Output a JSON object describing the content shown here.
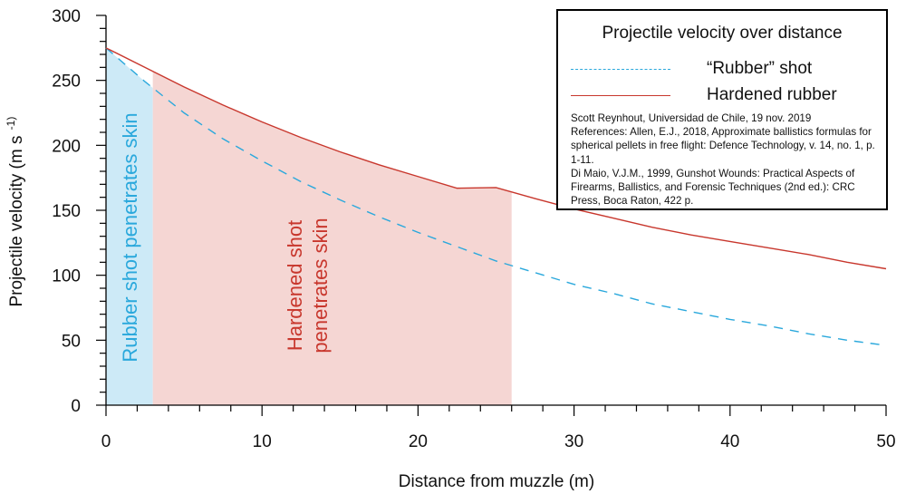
{
  "chart_data": {
    "type": "line",
    "xlabel": "Distance from muzzle (m)",
    "ylabel": "Projectile velocity (m s",
    "ylabel_superscript": "-1)",
    "xlim": [
      0,
      50
    ],
    "ylim": [
      0,
      300
    ],
    "x_ticks": [
      0,
      10,
      20,
      30,
      40,
      50
    ],
    "y_ticks": [
      0,
      50,
      100,
      150,
      200,
      250,
      300
    ],
    "x_tick_labels": [
      "0",
      "10",
      "20",
      "30",
      "40",
      "50"
    ],
    "y_tick_labels": [
      "0",
      "50",
      "100",
      "150",
      "200",
      "250",
      "300"
    ],
    "series": [
      {
        "name": "“Rubber” shot",
        "style": "dashed",
        "color": "#2aa8dc",
        "x": [
          0,
          2.5,
          5,
          7.5,
          10,
          12.5,
          15,
          17.5,
          20,
          22.5,
          25,
          27.5,
          30,
          32.5,
          35,
          37.5,
          40,
          42.5,
          45,
          47.5,
          50
        ],
        "y": [
          275,
          249,
          225,
          205,
          188,
          172,
          158,
          145,
          133,
          122,
          111,
          102,
          93,
          86,
          78,
          72,
          66,
          61,
          55,
          50,
          46
        ]
      },
      {
        "name": "Hardened rubber",
        "style": "solid",
        "color": "#c8372d",
        "x": [
          0,
          2.5,
          5,
          7.5,
          10,
          12.5,
          15,
          17.5,
          20,
          22.5,
          25,
          27.5,
          30,
          32.5,
          35,
          37.5,
          40,
          42.5,
          45,
          47.5,
          50
        ],
        "y": [
          275,
          260,
          245,
          231,
          218,
          206,
          195,
          185,
          176,
          167,
          167.5,
          159,
          151,
          144,
          137,
          131,
          126,
          121,
          116,
          110,
          105
        ]
      }
    ],
    "regions": [
      {
        "name": "Rubber shot penetrates skin",
        "x0": 0,
        "x1": 3,
        "color": "#cdeaf7",
        "under": "“Rubber” shot",
        "label_color": "#2aa8dc"
      },
      {
        "name": "Hardened shot penetrates skin",
        "x0": 3,
        "x1": 26,
        "color": "#f5d6d3",
        "under": "Hardened rubber",
        "label_color": "#c8372d"
      }
    ],
    "annotations": {
      "rubber_region_label": "Rubber shot penetrates skin",
      "hardened_region_label_line1": "Hardened shot",
      "hardened_region_label_line2": "penetrates skin"
    }
  },
  "legend": {
    "title": "Projectile velocity over distance",
    "items": [
      {
        "label": "“Rubber” shot",
        "style": "dashed"
      },
      {
        "label": "Hardened rubber",
        "style": "solid"
      }
    ],
    "notes": [
      "Scott Reynhout, Universidad de Chile, 19 nov. 2019",
      "References: Allen, E.J., 2018, Approximate ballistics formulas for spherical pellets in free flight: Defence Technology, v. 14, no. 1, p. 1-11.",
      "Di Maio, V.J.M., 1999, Gunshot Wounds: Practical Aspects of Firearms, Ballistics, and Forensic Techniques (2nd ed.): CRC Press, Boca Raton, 422 p."
    ]
  }
}
